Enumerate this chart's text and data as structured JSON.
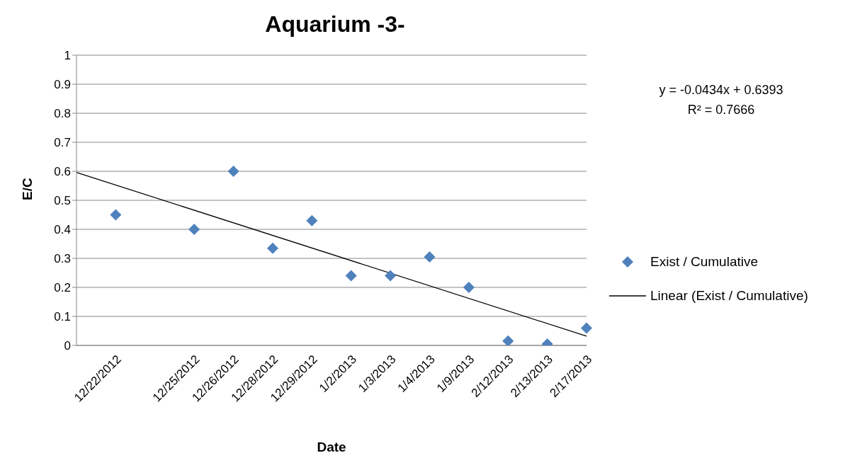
{
  "chart_data": {
    "type": "scatter",
    "title": "Aquarium -3-",
    "xlabel": "Date",
    "ylabel": "E/C",
    "categories": [
      null,
      "12/22/2012",
      null,
      "12/25/2012",
      "12/26/2012",
      "12/28/2012",
      "12/29/2012",
      "1/2/2013",
      "1/3/2013",
      "1/4/2013",
      "1/9/2013",
      "2/12/2013",
      "2/13/2013",
      "2/17/2013"
    ],
    "series": [
      {
        "name": "Exist / Cumulative",
        "color": "#4f81bd",
        "marker": "diamond",
        "values": [
          null,
          0.45,
          null,
          0.4,
          0.6,
          0.335,
          0.43,
          0.24,
          0.24,
          0.305,
          0.2,
          0.015,
          0.005,
          0.06
        ]
      },
      {
        "name": "Linear (Exist / Cumulative)",
        "type": "line",
        "color": "#000000",
        "marker": "none",
        "line_style": "solid",
        "values": [
          0.596,
          null,
          null,
          null,
          null,
          null,
          null,
          null,
          null,
          null,
          null,
          null,
          null,
          0.032
        ]
      }
    ],
    "ylim": [
      0,
      1
    ],
    "yticks": [
      0,
      0.1,
      0.2,
      0.3,
      0.4,
      0.5,
      0.6,
      0.7,
      0.8,
      0.9,
      1
    ],
    "grid": "y",
    "legend": "right",
    "annotations": [
      "y = -0.0434x + 0.6393",
      "R² = 0.7666"
    ]
  }
}
